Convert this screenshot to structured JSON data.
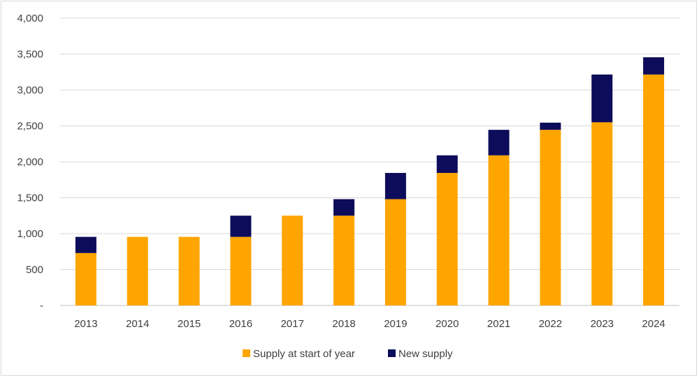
{
  "chart_data": {
    "type": "bar",
    "stacked": true,
    "categories": [
      "2013",
      "2014",
      "2015",
      "2016",
      "2017",
      "2018",
      "2019",
      "2020",
      "2021",
      "2022",
      "2023",
      "2024"
    ],
    "series": [
      {
        "name": "Supply at start of year",
        "color": "#ffa500",
        "values": [
          730,
          955,
          955,
          955,
          1250,
          1250,
          1480,
          1845,
          2090,
          2445,
          2550,
          3215
        ]
      },
      {
        "name": "New supply",
        "color": "#0c0c5a",
        "values": [
          225,
          0,
          0,
          295,
          0,
          230,
          365,
          245,
          355,
          100,
          665,
          240
        ]
      }
    ],
    "ylim": [
      0,
      4000
    ],
    "yticks": [
      0,
      500,
      1000,
      1500,
      2000,
      2500,
      3000,
      3500,
      4000
    ],
    "ytick_labels": [
      "-",
      "500",
      "1,000",
      "1,500",
      "2,000",
      "2,500",
      "3,000",
      "3,500",
      "4,000"
    ],
    "grid": true,
    "legend_position": "bottom"
  }
}
